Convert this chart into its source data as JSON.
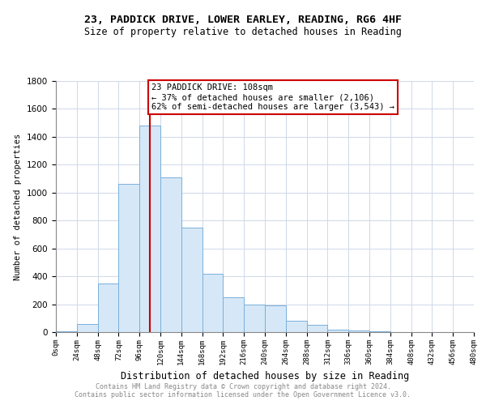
{
  "title1": "23, PADDICK DRIVE, LOWER EARLEY, READING, RG6 4HF",
  "title2": "Size of property relative to detached houses in Reading",
  "xlabel": "Distribution of detached houses by size in Reading",
  "ylabel": "Number of detached properties",
  "bin_edges": [
    0,
    24,
    48,
    72,
    96,
    120,
    144,
    168,
    192,
    216,
    240,
    264,
    288,
    312,
    336,
    360,
    384,
    408,
    432,
    456,
    480
  ],
  "counts": [
    5,
    60,
    350,
    1060,
    1480,
    1110,
    750,
    420,
    250,
    200,
    190,
    80,
    50,
    15,
    10,
    5,
    0,
    0,
    0,
    0
  ],
  "bar_color": "#d6e8f7",
  "bar_edge_color": "#7aafdb",
  "property_size": 108,
  "annotation_title": "23 PADDICK DRIVE: 108sqm",
  "annotation_line1": "← 37% of detached houses are smaller (2,106)",
  "annotation_line2": "62% of semi-detached houses are larger (3,543) →",
  "vline_color": "#cc0000",
  "annotation_box_edge_color": "#cc0000",
  "footer1": "Contains HM Land Registry data © Crown copyright and database right 2024.",
  "footer2": "Contains public sector information licensed under the Open Government Licence v3.0.",
  "ylim": [
    0,
    1800
  ],
  "yticks": [
    0,
    200,
    400,
    600,
    800,
    1000,
    1200,
    1400,
    1600,
    1800
  ],
  "bg_color": "#ffffff",
  "grid_color": "#d0d8e8"
}
